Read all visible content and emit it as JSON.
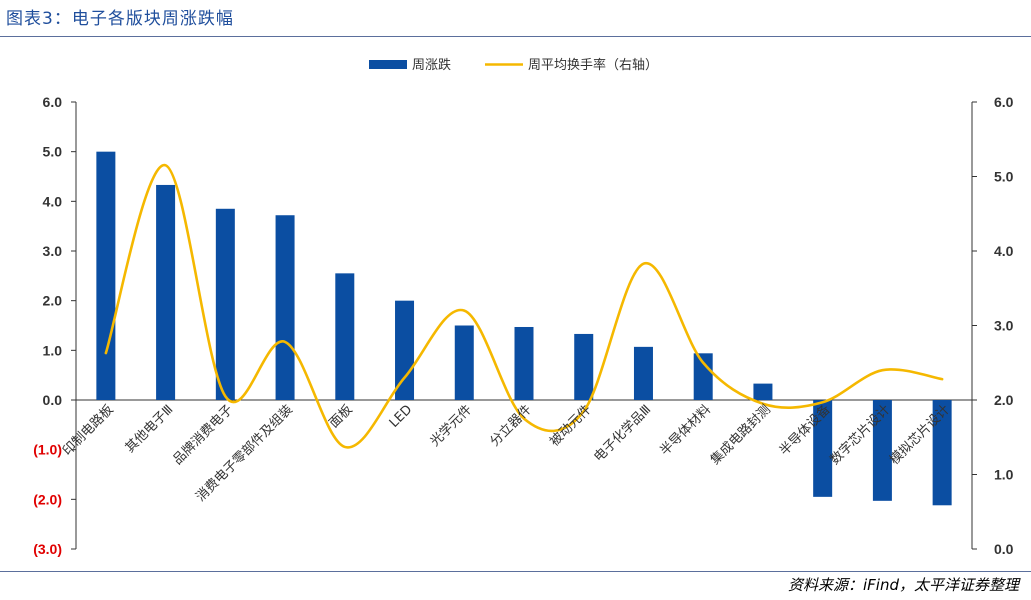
{
  "figure": {
    "title": "图表3：电子各版块周涨跌幅",
    "source": "资料来源：iFind，太平洋证券整理"
  },
  "chart_data": {
    "type": "bar",
    "categories": [
      "印制电路板",
      "其他电子Ⅲ",
      "品牌消费电子",
      "消费电子零部件及组装",
      "面板",
      "LED",
      "光学元件",
      "分立器件",
      "被动元件",
      "电子化学品Ⅲ",
      "半导体材料",
      "集成电路封测",
      "半导体设备",
      "数字芯片设计",
      "模拟芯片设计"
    ],
    "series": [
      {
        "name": "周涨跌",
        "type": "bar",
        "axis": "left",
        "color": "#0b4ea2",
        "values": [
          5.0,
          4.33,
          3.85,
          3.72,
          2.55,
          2.0,
          1.5,
          1.47,
          1.33,
          1.07,
          0.94,
          0.33,
          -1.95,
          -2.03,
          -2.12
        ]
      },
      {
        "name": "周平均换手率（右轴）",
        "type": "line",
        "axis": "right",
        "color": "#f5b800",
        "values": [
          2.63,
          5.15,
          2.05,
          2.78,
          1.37,
          2.3,
          3.2,
          1.75,
          1.85,
          3.83,
          2.5,
          1.95,
          1.97,
          2.4,
          2.28
        ]
      }
    ],
    "y_left": {
      "min": -3.0,
      "max": 6.0,
      "step": 1.0,
      "ticks": [
        "(3.0)",
        "(2.0)",
        "(1.0)",
        "0.0",
        "1.0",
        "2.0",
        "3.0",
        "4.0",
        "5.0",
        "6.0"
      ]
    },
    "y_right": {
      "min": 0.0,
      "max": 6.0,
      "step": 1.0,
      "ticks": [
        "0.0",
        "1.0",
        "2.0",
        "3.0",
        "4.0",
        "5.0",
        "6.0"
      ]
    },
    "legend_position": "top-center",
    "grid": false
  }
}
